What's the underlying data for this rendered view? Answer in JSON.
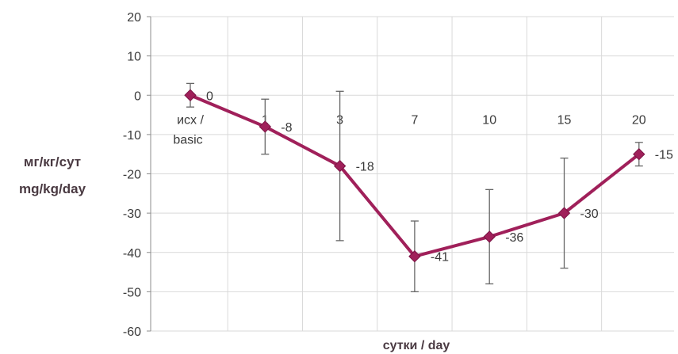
{
  "chart_data": {
    "type": "line",
    "categories": [
      "исх / basic",
      "1",
      "3",
      "7",
      "10",
      "15",
      "20"
    ],
    "series": [
      {
        "values": [
          0,
          -8,
          -18,
          -41,
          -36,
          -30,
          -15
        ],
        "error_low": [
          -3,
          -15,
          -37,
          -50,
          -48,
          -44,
          -18
        ],
        "error_high": [
          3,
          -1,
          1,
          -32,
          -24,
          -16,
          -12
        ]
      }
    ],
    "data_labels": [
      "0",
      "-8",
      "-18",
      "-41",
      "-36",
      "-30",
      "-15"
    ],
    "ylabel": [
      "мг/кг/сут",
      "mg/kg/day"
    ],
    "xlabel": "сутки /  day",
    "ylim": [
      -60,
      20
    ],
    "yticks": [
      20,
      10,
      0,
      -10,
      -20,
      -30,
      -40,
      -50,
      -60
    ],
    "grid": "vertical",
    "line_color": "#a0205a",
    "marker_color": "#a0205a",
    "grid_color": "#d9d9d9",
    "errorbar_color": "#666666"
  }
}
